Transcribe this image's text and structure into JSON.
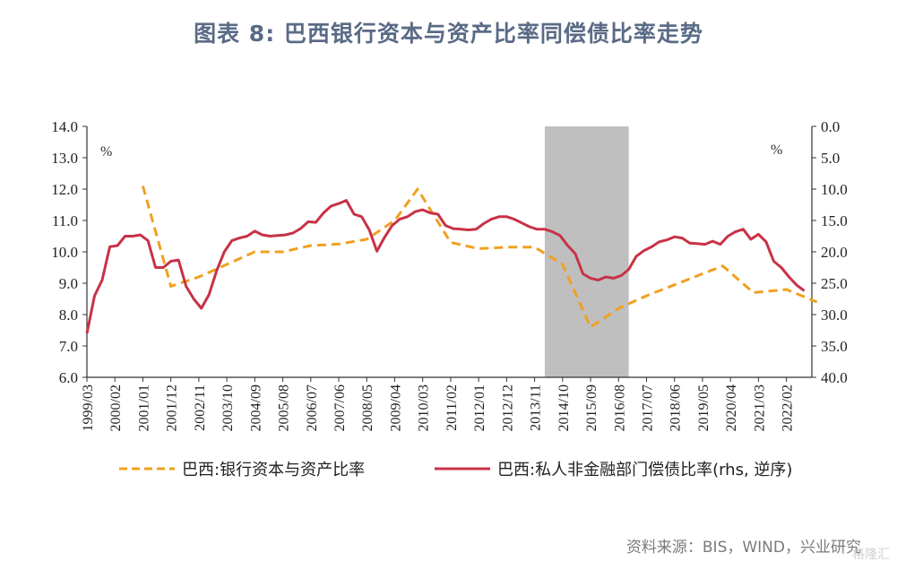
{
  "title": "图表 8:  巴西银行资本与资产比率同偿债比率走势",
  "source": "资料来源：BIS，WIND，兴业研究",
  "watermark": "格隆汇",
  "chart_data": {
    "type": "line",
    "left_axis": {
      "unit": "%",
      "ylim": [
        6.0,
        14.0
      ],
      "ticks": [
        "6.0",
        "7.0",
        "8.0",
        "9.0",
        "10.0",
        "11.0",
        "12.0",
        "13.0",
        "14.0"
      ]
    },
    "right_axis": {
      "unit": "%",
      "ylim": [
        0.0,
        40.0
      ],
      "inverted": true,
      "ticks": [
        "0.0",
        "5.0",
        "10.0",
        "15.0",
        "20.0",
        "25.0",
        "30.0",
        "35.0",
        "40.0"
      ]
    },
    "x_ticks": [
      "1999/03",
      "2000/02",
      "2001/01",
      "2001/12",
      "2002/11",
      "2003/10",
      "2004/09",
      "2005/08",
      "2006/07",
      "2007/06",
      "2008/05",
      "2009/04",
      "2010/03",
      "2011/02",
      "2012/01",
      "2012/12",
      "2013/11",
      "2014/10",
      "2015/09",
      "2016/08",
      "2017/07",
      "2018/06",
      "2019/05",
      "2020/04",
      "2021/03",
      "2022/02"
    ],
    "shaded_region": {
      "from": "2014/03",
      "to": "2016/12",
      "color": "#bfbfbf"
    },
    "series": [
      {
        "name": "巴西:银行资本与资产比率",
        "axis": "left",
        "style": "dashed",
        "color": "#f0a020",
        "points": [
          [
            "2001/01",
            12.1
          ],
          [
            "2001/12",
            8.9
          ],
          [
            "2002/11",
            9.2
          ],
          [
            "2003/10",
            9.6
          ],
          [
            "2004/09",
            10.0
          ],
          [
            "2005/08",
            10.0
          ],
          [
            "2006/07",
            10.2
          ],
          [
            "2007/06",
            10.25
          ],
          [
            "2008/05",
            10.4
          ],
          [
            "2009/04",
            11.0
          ],
          [
            "2010/01",
            12.0
          ],
          [
            "2011/02",
            10.3
          ],
          [
            "2012/01",
            10.1
          ],
          [
            "2012/12",
            10.15
          ],
          [
            "2013/11",
            10.15
          ],
          [
            "2014/10",
            9.6
          ],
          [
            "2015/09",
            7.6
          ],
          [
            "2016/08",
            8.2
          ],
          [
            "2017/07",
            8.6
          ],
          [
            "2018/06",
            8.95
          ],
          [
            "2019/05",
            9.3
          ],
          [
            "2020/01",
            9.55
          ],
          [
            "2021/01",
            8.7
          ],
          [
            "2022/02",
            8.8
          ],
          [
            "2023/02",
            8.4
          ]
        ]
      },
      {
        "name": "巴西:私人非金融部门偿债比率(rhs, 逆序)",
        "axis": "right",
        "style": "solid",
        "color": "#c83246",
        "points": [
          [
            "1999/03",
            33.0
          ],
          [
            "1999/06",
            27.0
          ],
          [
            "1999/09",
            24.5
          ],
          [
            "1999/12",
            19.2
          ],
          [
            "2000/03",
            19.0
          ],
          [
            "2000/06",
            17.5
          ],
          [
            "2000/09",
            17.5
          ],
          [
            "2000/12",
            17.3
          ],
          [
            "2001/03",
            18.2
          ],
          [
            "2001/06",
            22.5
          ],
          [
            "2001/09",
            22.5
          ],
          [
            "2001/12",
            21.5
          ],
          [
            "2002/03",
            21.3
          ],
          [
            "2002/06",
            25.5
          ],
          [
            "2002/09",
            27.5
          ],
          [
            "2002/12",
            29.0
          ],
          [
            "2003/03",
            26.8
          ],
          [
            "2003/06",
            23.0
          ],
          [
            "2003/09",
            20.0
          ],
          [
            "2003/12",
            18.2
          ],
          [
            "2004/03",
            17.8
          ],
          [
            "2004/06",
            17.5
          ],
          [
            "2004/09",
            16.7
          ],
          [
            "2004/12",
            17.3
          ],
          [
            "2005/03",
            17.5
          ],
          [
            "2005/06",
            17.4
          ],
          [
            "2005/09",
            17.3
          ],
          [
            "2005/12",
            17.0
          ],
          [
            "2006/03",
            16.3
          ],
          [
            "2006/06",
            15.2
          ],
          [
            "2006/09",
            15.3
          ],
          [
            "2006/12",
            13.8
          ],
          [
            "2007/03",
            12.7
          ],
          [
            "2007/06",
            12.3
          ],
          [
            "2007/09",
            11.8
          ],
          [
            "2007/12",
            14.0
          ],
          [
            "2008/03",
            14.4
          ],
          [
            "2008/06",
            16.5
          ],
          [
            "2008/09",
            19.9
          ],
          [
            "2008/12",
            17.7
          ],
          [
            "2009/03",
            15.8
          ],
          [
            "2009/06",
            14.8
          ],
          [
            "2009/09",
            14.4
          ],
          [
            "2009/12",
            13.6
          ],
          [
            "2010/03",
            13.3
          ],
          [
            "2010/06",
            13.8
          ],
          [
            "2010/09",
            14.0
          ],
          [
            "2010/12",
            15.8
          ],
          [
            "2011/03",
            16.3
          ],
          [
            "2011/06",
            16.4
          ],
          [
            "2011/09",
            16.5
          ],
          [
            "2011/12",
            16.4
          ],
          [
            "2012/03",
            15.5
          ],
          [
            "2012/06",
            14.8
          ],
          [
            "2012/09",
            14.4
          ],
          [
            "2012/12",
            14.4
          ],
          [
            "2013/03",
            14.8
          ],
          [
            "2013/06",
            15.4
          ],
          [
            "2013/09",
            16.0
          ],
          [
            "2013/12",
            16.4
          ],
          [
            "2014/03",
            16.4
          ],
          [
            "2014/06",
            16.8
          ],
          [
            "2014/09",
            17.4
          ],
          [
            "2014/12",
            19.0
          ],
          [
            "2015/03",
            20.3
          ],
          [
            "2015/06",
            23.5
          ],
          [
            "2015/09",
            24.2
          ],
          [
            "2015/12",
            24.5
          ],
          [
            "2016/03",
            24.0
          ],
          [
            "2016/06",
            24.2
          ],
          [
            "2016/09",
            23.8
          ],
          [
            "2016/12",
            22.8
          ],
          [
            "2017/03",
            20.7
          ],
          [
            "2017/06",
            19.8
          ],
          [
            "2017/09",
            19.2
          ],
          [
            "2017/12",
            18.4
          ],
          [
            "2018/03",
            18.1
          ],
          [
            "2018/06",
            17.6
          ],
          [
            "2018/09",
            17.8
          ],
          [
            "2018/12",
            18.6
          ],
          [
            "2019/03",
            18.7
          ],
          [
            "2019/06",
            18.8
          ],
          [
            "2019/09",
            18.3
          ],
          [
            "2019/12",
            18.8
          ],
          [
            "2020/03",
            17.5
          ],
          [
            "2020/06",
            16.8
          ],
          [
            "2020/09",
            16.4
          ],
          [
            "2020/12",
            18.0
          ],
          [
            "2021/03",
            17.2
          ],
          [
            "2021/06",
            18.4
          ],
          [
            "2021/09",
            21.5
          ],
          [
            "2021/12",
            22.5
          ],
          [
            "2022/03",
            24.0
          ],
          [
            "2022/06",
            25.3
          ],
          [
            "2022/09",
            26.2
          ]
        ]
      }
    ],
    "legend": {
      "placement": "bottom"
    }
  }
}
